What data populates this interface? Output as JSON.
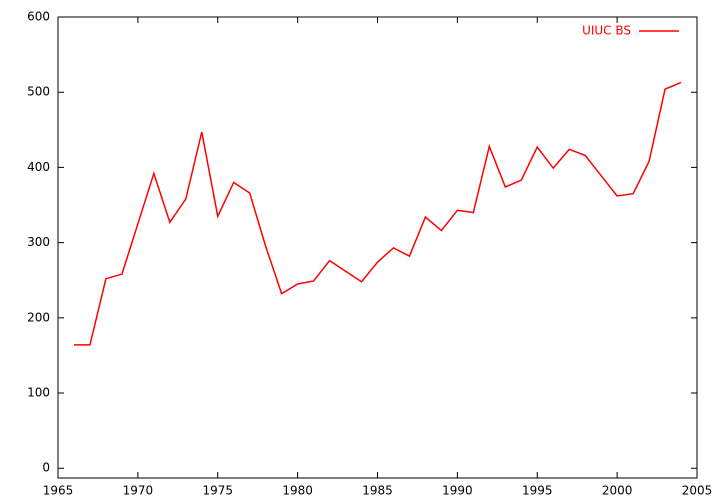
{
  "chart_data": {
    "type": "line",
    "x": [
      1966,
      1967,
      1968,
      1969,
      1970,
      1971,
      1972,
      1973,
      1974,
      1975,
      1976,
      1977,
      1978,
      1979,
      1980,
      1981,
      1982,
      1983,
      1984,
      1985,
      1986,
      1987,
      1988,
      1989,
      1990,
      1991,
      1992,
      1993,
      1994,
      1995,
      1996,
      1997,
      1998,
      1999,
      2000,
      2001,
      2002,
      2003,
      2004
    ],
    "series": [
      {
        "name": "UIUC BS",
        "color": "#ff0000",
        "values": [
          164,
          164,
          252,
          258,
          325,
          392,
          327,
          358,
          447,
          335,
          380,
          366,
          295,
          232,
          245,
          249,
          276,
          262,
          248,
          274,
          293,
          282,
          334,
          316,
          343,
          340,
          428,
          374,
          383,
          427,
          399,
          424,
          416,
          389,
          362,
          365,
          408,
          504,
          513
        ]
      }
    ],
    "xlim": [
      1965,
      2005
    ],
    "xticks": [
      1965,
      1970,
      1975,
      1980,
      1985,
      1990,
      1995,
      2000,
      2005
    ],
    "ylim": [
      -13,
      600
    ],
    "yticks": [
      0,
      100,
      200,
      300,
      400,
      500,
      600
    ],
    "legend": "top-right"
  }
}
